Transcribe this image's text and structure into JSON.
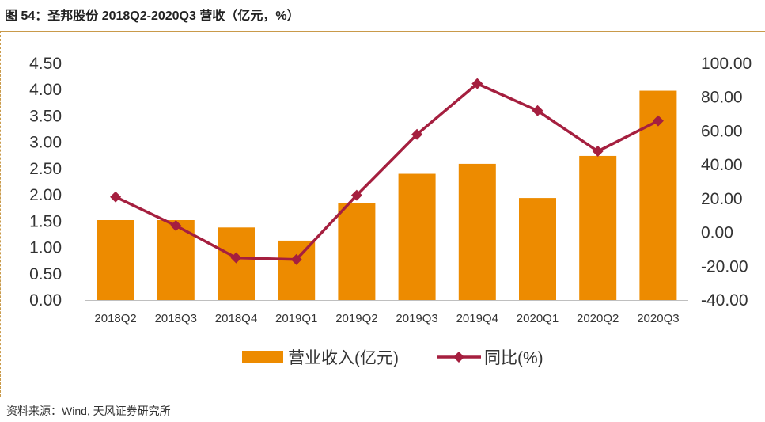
{
  "header": {
    "title": "图 54：圣邦股份 2018Q2-2020Q3 营收（亿元，%）"
  },
  "footer": {
    "source": "资料来源：Wind, 天风证券研究所"
  },
  "colors": {
    "bar": "#ED8B00",
    "line": "#A51F3F",
    "rule": "#C99A4A"
  },
  "chart_data": {
    "type": "bar",
    "categories": [
      "2018Q2",
      "2018Q3",
      "2018Q4",
      "2019Q1",
      "2019Q2",
      "2019Q3",
      "2019Q4",
      "2020Q1",
      "2020Q2",
      "2020Q3"
    ],
    "series": [
      {
        "name": "营业收入(亿元)",
        "type": "bar",
        "axis": "left",
        "values": [
          1.52,
          1.52,
          1.38,
          1.13,
          1.85,
          2.4,
          2.59,
          1.94,
          2.74,
          3.98
        ]
      },
      {
        "name": "同比(%)",
        "type": "line",
        "axis": "right",
        "values": [
          21.0,
          4.0,
          -15.0,
          -16.0,
          22.0,
          58.0,
          88.0,
          72.0,
          48.0,
          66.0
        ]
      }
    ],
    "ylim_left": [
      0,
      4.5
    ],
    "yticks_left": [
      "0.00",
      "0.50",
      "1.00",
      "1.50",
      "2.00",
      "2.50",
      "3.00",
      "3.50",
      "4.00",
      "4.50"
    ],
    "ylim_right": [
      -40,
      100
    ],
    "yticks_right": [
      "-40.00",
      "-20.00",
      "0.00",
      "20.00",
      "40.00",
      "60.00",
      "80.00",
      "100.00"
    ],
    "legend_position": "bottom",
    "grid": false
  }
}
